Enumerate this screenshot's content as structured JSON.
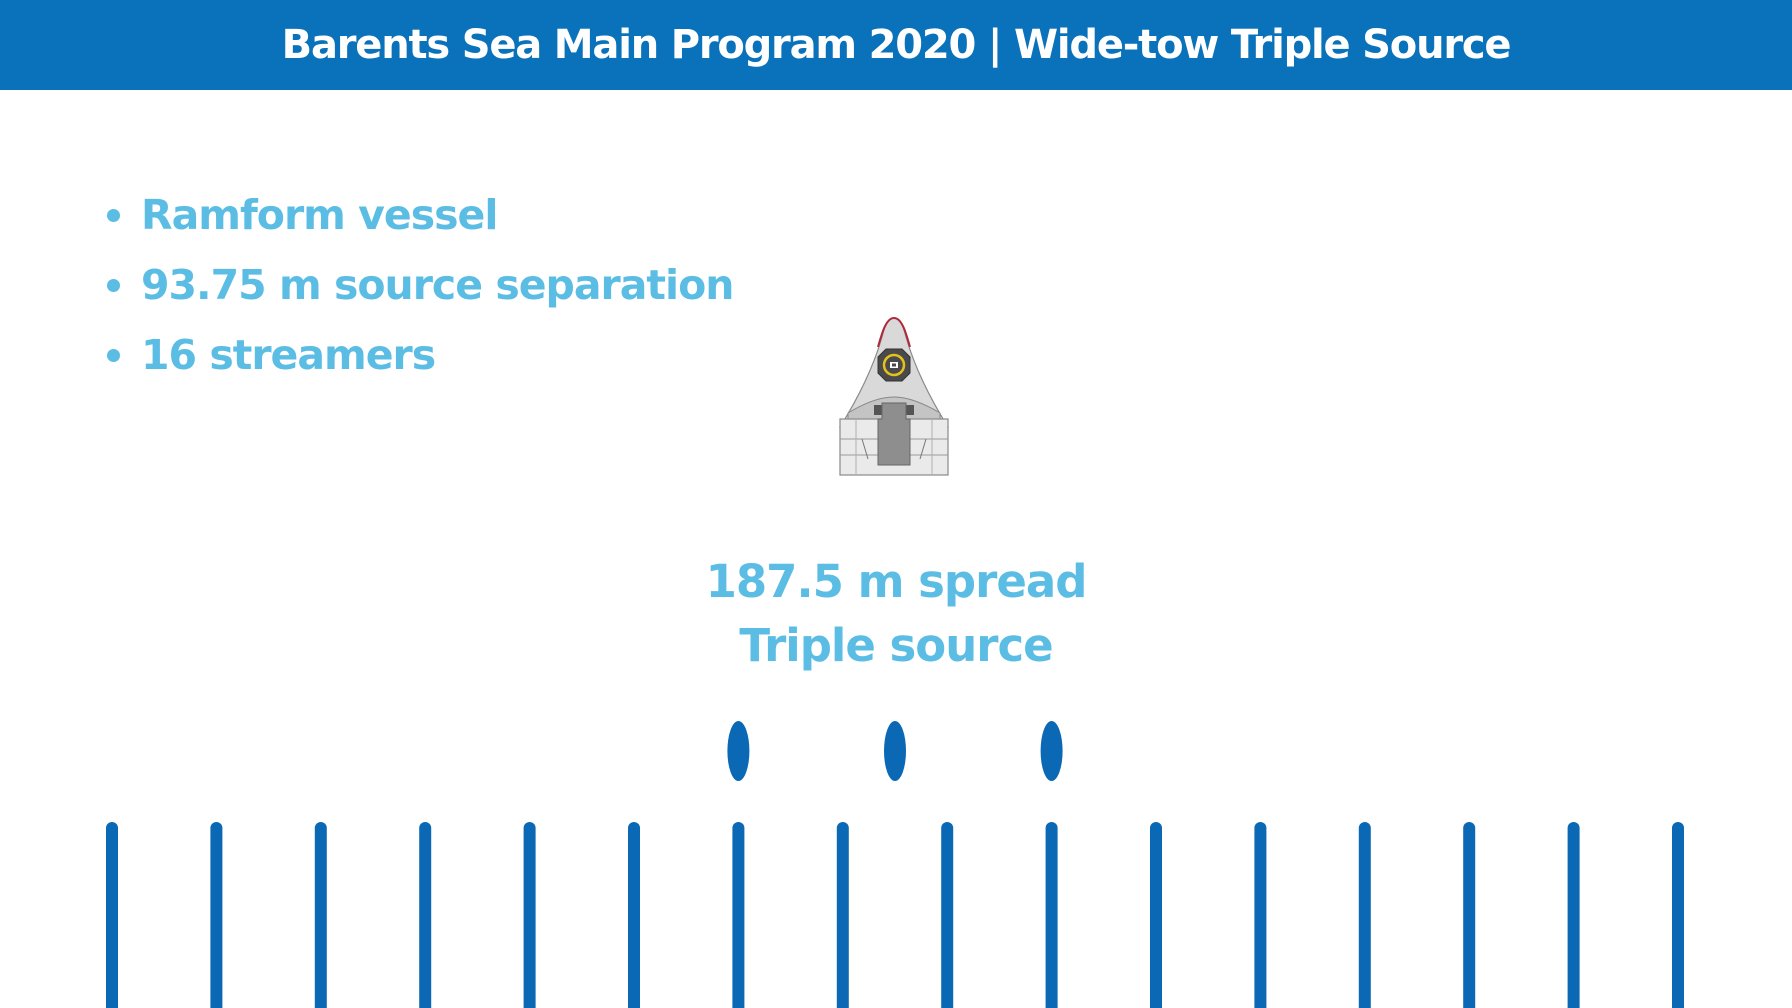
{
  "header": {
    "title": "Barents Sea Main Program 2020 | Wide-tow Triple Source"
  },
  "bullets": [
    "Ramform vessel",
    "93.75 m source separation",
    "16 streamers"
  ],
  "spread": {
    "line1": "187.5 m spread",
    "line2": "Triple source"
  },
  "layout": {
    "source_count": 3,
    "streamer_count": 16
  },
  "colors": {
    "header_background": "#0a72ba",
    "header_text": "#ffffff",
    "accent_text": "#5bbde4",
    "source_and_streamer": "#0a68b4",
    "vessel_hull": "#d9d9d9",
    "vessel_bow_outline": "#b0283c",
    "vessel_helipad_ring": "#e4c21c"
  },
  "icons": {
    "vessel": "ramform-vessel-icon"
  }
}
